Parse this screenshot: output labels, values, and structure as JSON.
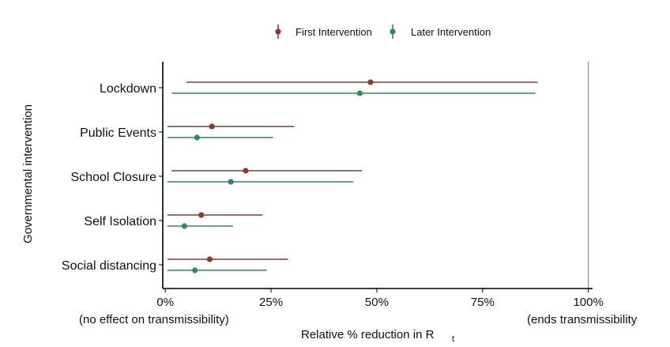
{
  "chart_data": {
    "type": "errorbar",
    "categories": [
      "Lockdown",
      "Public Events",
      "School Closure",
      "Self Isolation",
      "Social distancing"
    ],
    "series": [
      {
        "name": "First Intervention",
        "color": "#8B3A2F",
        "estimates": [
          48.5,
          11,
          19,
          8.5,
          10.5
        ],
        "lower": [
          5,
          0.5,
          1.5,
          0.5,
          0.5
        ],
        "upper": [
          88,
          30.5,
          46.5,
          23,
          29
        ]
      },
      {
        "name": "Later Intervention",
        "color": "#2E8B57",
        "estimates": [
          46,
          7.5,
          15.5,
          4.5,
          7
        ],
        "lower": [
          1.5,
          0.5,
          0.5,
          0.5,
          0.5
        ],
        "upper": [
          87.5,
          25.5,
          44.5,
          16,
          24
        ]
      }
    ],
    "x_ticks": [
      {
        "value": 0,
        "label": "0%"
      },
      {
        "value": 25,
        "label": "25%"
      },
      {
        "value": 50,
        "label": "50%"
      },
      {
        "value": 75,
        "label": "75%"
      },
      {
        "value": 100,
        "label": "100%"
      }
    ],
    "xlim": [
      -0.6,
      101
    ],
    "x_reference_line": 100,
    "x_left_note": "(no effect on transmissibility)",
    "x_right_note": "(ends transmissibility",
    "xlabel_main": "Relative % reduction in R",
    "xlabel_sub": "t",
    "ylabel": "Governmental intervention",
    "legend_position": "top"
  }
}
